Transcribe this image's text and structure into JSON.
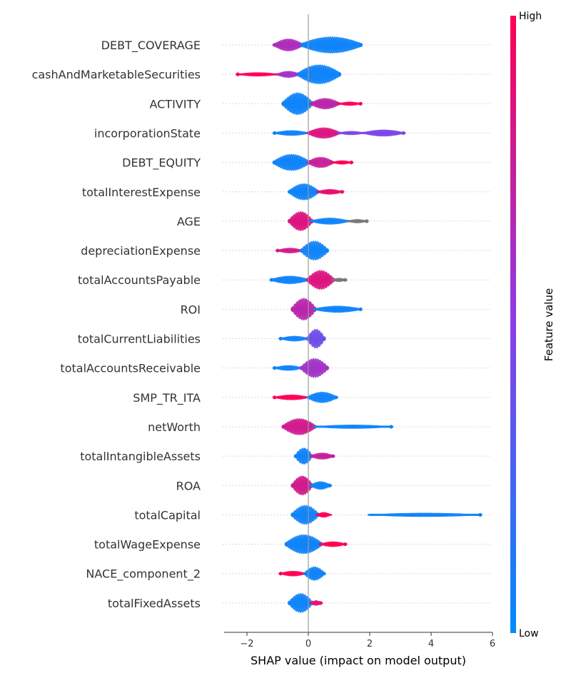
{
  "chart_data": {
    "type": "scatter",
    "subtype": "shap-beeswarm",
    "xlabel": "SHAP value (impact on model output)",
    "xlim": [
      -2.75,
      6.0
    ],
    "xticks": [
      -2,
      0,
      2,
      4,
      6
    ],
    "colorbar": {
      "title": "Feature value",
      "high_label": "High",
      "low_label": "Low",
      "low_color": "#008bfb",
      "mid_color": "#8a3ee6",
      "high_color": "#ff0052"
    },
    "colors": {
      "low": "#008bfb",
      "mid": "#8a3ee6",
      "high": "#ff0052",
      "missing": "#777777",
      "zero_line": "#999999",
      "row_line": "#cccccc"
    },
    "features": [
      {
        "name": "DEBT_COVERAGE",
        "min": -1.1,
        "max": 1.7,
        "segments": [
          {
            "from": -1.1,
            "to": -0.2,
            "c": 0.65,
            "w": 9
          },
          {
            "from": -0.2,
            "to": 1.7,
            "c": 0.05,
            "w": 12
          }
        ]
      },
      {
        "name": "cashAndMarketableSecurities",
        "min": -2.3,
        "max": 1.0,
        "segments": [
          {
            "from": -2.3,
            "to": -1.0,
            "c": 1.0,
            "w": 3
          },
          {
            "from": -1.0,
            "to": -0.3,
            "c": 0.6,
            "w": 5
          },
          {
            "from": -0.3,
            "to": 1.0,
            "c": 0.05,
            "w": 14
          }
        ]
      },
      {
        "name": "ACTIVITY",
        "min": -0.8,
        "max": 1.7,
        "segments": [
          {
            "from": -0.8,
            "to": 0.1,
            "c": 0.05,
            "w": 16
          },
          {
            "from": 0.1,
            "to": 1.0,
            "c": 0.7,
            "w": 8
          },
          {
            "from": 1.0,
            "to": 1.7,
            "c": 1.0,
            "w": 3
          }
        ]
      },
      {
        "name": "incorporationState",
        "min": -1.1,
        "max": 3.1,
        "segments": [
          {
            "from": -1.1,
            "to": 0.0,
            "c": 0.05,
            "w": 4
          },
          {
            "from": 0.0,
            "to": 1.0,
            "c": 0.85,
            "w": 8
          },
          {
            "from": 1.0,
            "to": 1.8,
            "c": 0.45,
            "w": 3
          },
          {
            "from": 1.8,
            "to": 3.1,
            "c": 0.45,
            "w": 5
          }
        ]
      },
      {
        "name": "DEBT_EQUITY",
        "min": -1.1,
        "max": 1.4,
        "segments": [
          {
            "from": -1.1,
            "to": 0.0,
            "c": 0.05,
            "w": 12
          },
          {
            "from": 0.0,
            "to": 0.8,
            "c": 0.75,
            "w": 8
          },
          {
            "from": 0.8,
            "to": 1.4,
            "c": 1.0,
            "w": 3
          }
        ]
      },
      {
        "name": "totalInterestExpense",
        "min": -0.6,
        "max": 1.1,
        "segments": [
          {
            "from": -0.6,
            "to": 0.3,
            "c": 0.05,
            "w": 12
          },
          {
            "from": 0.3,
            "to": 1.1,
            "c": 0.9,
            "w": 4
          }
        ]
      },
      {
        "name": "AGE",
        "min": -0.6,
        "max": 1.9,
        "segments": [
          {
            "from": -0.6,
            "to": 0.1,
            "c": 0.85,
            "w": 14
          },
          {
            "from": 0.1,
            "to": 1.3,
            "c": 0.05,
            "w": 5
          },
          {
            "from": 1.3,
            "to": 1.9,
            "c": -1,
            "w": 3
          }
        ]
      },
      {
        "name": "depreciationExpense",
        "min": -1.0,
        "max": 0.6,
        "segments": [
          {
            "from": -1.0,
            "to": -0.2,
            "c": 0.8,
            "w": 4
          },
          {
            "from": -0.2,
            "to": 0.6,
            "c": 0.05,
            "w": 14
          }
        ]
      },
      {
        "name": "totalAccountsPayable",
        "min": -1.2,
        "max": 1.2,
        "segments": [
          {
            "from": -1.2,
            "to": 0.0,
            "c": 0.05,
            "w": 6
          },
          {
            "from": 0.0,
            "to": 0.8,
            "c": 0.85,
            "w": 14
          },
          {
            "from": 0.8,
            "to": 1.2,
            "c": -1,
            "w": 3
          }
        ]
      },
      {
        "name": "ROI",
        "min": -0.5,
        "max": 1.7,
        "segments": [
          {
            "from": -0.5,
            "to": 0.2,
            "c": 0.7,
            "w": 16
          },
          {
            "from": 0.2,
            "to": 1.7,
            "c": 0.05,
            "w": 5
          }
        ]
      },
      {
        "name": "totalCurrentLiabilities",
        "min": -0.9,
        "max": 0.5,
        "segments": [
          {
            "from": -0.9,
            "to": 0.0,
            "c": 0.05,
            "w": 4
          },
          {
            "from": 0.0,
            "to": 0.5,
            "c": 0.4,
            "w": 14
          }
        ]
      },
      {
        "name": "totalAccountsReceivable",
        "min": -1.1,
        "max": 0.6,
        "segments": [
          {
            "from": -1.1,
            "to": -0.2,
            "c": 0.05,
            "w": 4
          },
          {
            "from": -0.2,
            "to": 0.6,
            "c": 0.6,
            "w": 14
          }
        ]
      },
      {
        "name": "SMP_TR_ITA",
        "min": -1.1,
        "max": 0.9,
        "segments": [
          {
            "from": -1.1,
            "to": 0.0,
            "c": 1.0,
            "w": 4
          },
          {
            "from": 0.0,
            "to": 0.9,
            "c": 0.05,
            "w": 8
          }
        ]
      },
      {
        "name": "netWorth",
        "min": -0.8,
        "max": 2.7,
        "segments": [
          {
            "from": -0.8,
            "to": 0.2,
            "c": 0.8,
            "w": 12
          },
          {
            "from": 0.2,
            "to": 2.7,
            "c": 0.05,
            "w": 3
          }
        ]
      },
      {
        "name": "totalIntangibleAssets",
        "min": -0.4,
        "max": 0.8,
        "segments": [
          {
            "from": -0.4,
            "to": 0.1,
            "c": 0.05,
            "w": 12
          },
          {
            "from": 0.1,
            "to": 0.8,
            "c": 0.75,
            "w": 5
          }
        ]
      },
      {
        "name": "ROA",
        "min": -0.5,
        "max": 0.7,
        "segments": [
          {
            "from": -0.5,
            "to": 0.1,
            "c": 0.8,
            "w": 14
          },
          {
            "from": 0.1,
            "to": 0.7,
            "c": 0.05,
            "w": 6
          }
        ]
      },
      {
        "name": "totalCapital",
        "min": -0.5,
        "max": 5.6,
        "segments": [
          {
            "from": -0.5,
            "to": 0.3,
            "c": 0.05,
            "w": 14
          },
          {
            "from": 0.3,
            "to": 0.7,
            "c": 1.0,
            "w": 4
          },
          {
            "from": 2.0,
            "to": 5.6,
            "c": 0.05,
            "w": 3
          }
        ]
      },
      {
        "name": "totalWageExpense",
        "min": -0.7,
        "max": 1.2,
        "segments": [
          {
            "from": -0.7,
            "to": 0.4,
            "c": 0.05,
            "w": 14
          },
          {
            "from": 0.4,
            "to": 1.2,
            "c": 1.0,
            "w": 4
          }
        ]
      },
      {
        "name": "NACE_component_2",
        "min": -0.9,
        "max": 0.5,
        "segments": [
          {
            "from": -0.9,
            "to": -0.1,
            "c": 1.0,
            "w": 4
          },
          {
            "from": -0.1,
            "to": 0.5,
            "c": 0.05,
            "w": 10
          }
        ]
      },
      {
        "name": "totalFixedAssets",
        "min": -0.6,
        "max": 0.4,
        "segments": [
          {
            "from": -0.6,
            "to": 0.1,
            "c": 0.05,
            "w": 14
          },
          {
            "from": 0.1,
            "to": 0.4,
            "c": 0.9,
            "w": 4
          }
        ]
      }
    ]
  }
}
